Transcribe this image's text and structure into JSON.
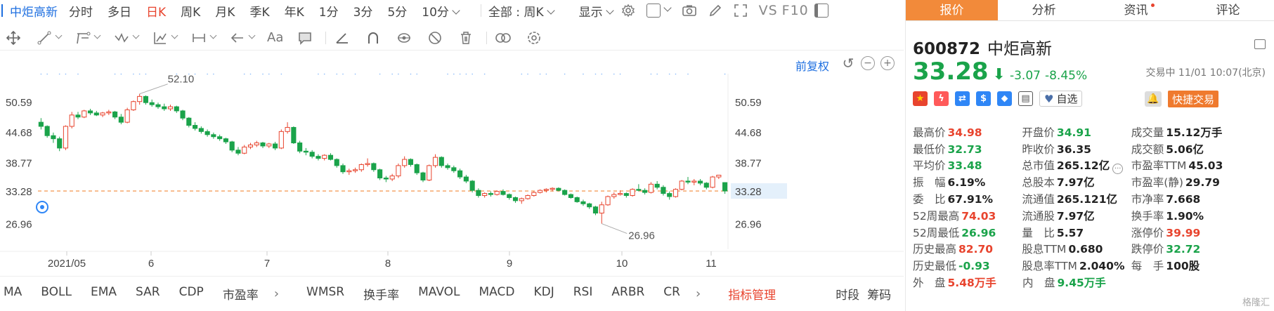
{
  "tabbar": {
    "stock_name": "中炬高新",
    "periods": [
      "分时",
      "多日",
      "日K",
      "周K",
      "月K",
      "季K",
      "年K",
      "1分",
      "3分",
      "5分",
      "10分"
    ],
    "active_period": "日K",
    "range_select": "全部 : 周K",
    "display_label": "显示",
    "vs_label": "VS",
    "f10_label": "F10"
  },
  "chart_header": {
    "adjust_label": "前复权"
  },
  "chart_data": {
    "type": "candlestick",
    "y_ticks": [
      50.59,
      44.68,
      38.77,
      33.28,
      26.96
    ],
    "y_range": [
      22.0,
      56.0
    ],
    "current_price": 33.28,
    "x_tick_labels": [
      "2021/05",
      "6",
      "7",
      "8",
      "9",
      "10",
      "11"
    ],
    "max_label": "52.10",
    "min_label": "26.96",
    "candles": [
      [
        46.6,
        47.4,
        45.2,
        45.8
      ],
      [
        45.8,
        46.0,
        43.6,
        44.0
      ],
      [
        44.0,
        44.6,
        42.6,
        43.4
      ],
      [
        43.4,
        43.8,
        41.0,
        41.6
      ],
      [
        41.6,
        46.0,
        41.2,
        45.8
      ],
      [
        45.8,
        48.6,
        45.4,
        48.0
      ],
      [
        48.0,
        48.6,
        47.2,
        47.6
      ],
      [
        47.6,
        49.0,
        47.4,
        48.8
      ],
      [
        48.8,
        49.2,
        48.0,
        48.4
      ],
      [
        48.4,
        48.8,
        47.8,
        48.0
      ],
      [
        48.0,
        48.6,
        47.6,
        48.4
      ],
      [
        48.4,
        49.0,
        48.0,
        48.6
      ],
      [
        48.6,
        48.8,
        47.2,
        47.6
      ],
      [
        47.6,
        48.2,
        46.2,
        46.6
      ],
      [
        46.6,
        49.4,
        46.4,
        49.0
      ],
      [
        49.0,
        50.8,
        48.8,
        50.6
      ],
      [
        50.6,
        52.1,
        50.0,
        51.6
      ],
      [
        51.6,
        51.8,
        50.0,
        50.4
      ],
      [
        50.4,
        51.0,
        49.6,
        50.0
      ],
      [
        50.0,
        50.4,
        49.2,
        49.6
      ],
      [
        49.6,
        50.2,
        48.8,
        49.2
      ],
      [
        49.2,
        50.0,
        48.8,
        49.6
      ],
      [
        49.6,
        49.8,
        48.4,
        48.8
      ],
      [
        48.8,
        49.0,
        47.0,
        47.4
      ],
      [
        47.4,
        47.6,
        45.6,
        46.0
      ],
      [
        46.0,
        46.6,
        45.0,
        45.4
      ],
      [
        45.4,
        45.8,
        44.4,
        44.8
      ],
      [
        44.8,
        45.2,
        43.8,
        44.2
      ],
      [
        44.2,
        44.6,
        43.4,
        43.8
      ],
      [
        43.8,
        44.2,
        43.0,
        43.4
      ],
      [
        43.4,
        43.6,
        42.4,
        42.8
      ],
      [
        42.8,
        43.0,
        40.8,
        41.2
      ],
      [
        41.2,
        41.8,
        40.2,
        40.6
      ],
      [
        40.6,
        42.2,
        40.4,
        41.8
      ],
      [
        41.8,
        42.6,
        41.4,
        42.2
      ],
      [
        42.2,
        43.0,
        41.8,
        42.6
      ],
      [
        42.6,
        42.8,
        41.6,
        42.0
      ],
      [
        42.0,
        42.6,
        41.6,
        42.4
      ],
      [
        42.4,
        42.8,
        41.2,
        41.6
      ],
      [
        41.6,
        45.2,
        41.4,
        44.8
      ],
      [
        44.8,
        46.6,
        44.4,
        45.6
      ],
      [
        45.6,
        45.8,
        42.4,
        42.6
      ],
      [
        42.6,
        43.0,
        40.6,
        41.0
      ],
      [
        41.0,
        41.6,
        40.2,
        40.8
      ],
      [
        40.8,
        41.2,
        39.6,
        40.0
      ],
      [
        40.0,
        40.4,
        39.2,
        39.6
      ],
      [
        39.6,
        40.4,
        39.2,
        40.2
      ],
      [
        40.2,
        40.6,
        39.2,
        39.4
      ],
      [
        39.4,
        39.6,
        37.8,
        38.2
      ],
      [
        38.2,
        38.6,
        36.6,
        37.0
      ],
      [
        37.0,
        37.6,
        36.4,
        37.2
      ],
      [
        37.2,
        37.8,
        36.8,
        37.4
      ],
      [
        37.4,
        38.6,
        37.0,
        38.4
      ],
      [
        38.4,
        39.6,
        38.0,
        38.6
      ],
      [
        38.6,
        38.8,
        37.0,
        37.4
      ],
      [
        37.4,
        37.6,
        35.4,
        35.8
      ],
      [
        35.8,
        36.2,
        35.0,
        35.6
      ],
      [
        35.6,
        36.6,
        35.2,
        36.2
      ],
      [
        36.2,
        38.6,
        35.8,
        38.2
      ],
      [
        38.2,
        40.0,
        37.8,
        39.4
      ],
      [
        39.4,
        39.6,
        38.0,
        38.4
      ],
      [
        38.4,
        38.6,
        36.4,
        36.8
      ],
      [
        36.8,
        37.0,
        35.0,
        35.4
      ],
      [
        35.4,
        38.4,
        35.2,
        38.2
      ],
      [
        38.2,
        40.4,
        37.8,
        39.8
      ],
      [
        39.8,
        40.0,
        37.8,
        38.2
      ],
      [
        38.2,
        38.6,
        37.4,
        37.8
      ],
      [
        37.8,
        38.2,
        36.8,
        37.2
      ],
      [
        37.2,
        37.6,
        35.6,
        36.0
      ],
      [
        36.0,
        36.4,
        34.8,
        35.2
      ],
      [
        35.2,
        35.4,
        33.0,
        33.4
      ],
      [
        33.4,
        33.8,
        32.0,
        32.4
      ],
      [
        32.4,
        33.0,
        32.0,
        32.8
      ],
      [
        32.8,
        33.2,
        32.2,
        32.6
      ],
      [
        32.6,
        33.4,
        32.4,
        33.2
      ],
      [
        33.2,
        33.6,
        32.4,
        32.6
      ],
      [
        32.6,
        32.8,
        31.6,
        32.0
      ],
      [
        32.0,
        32.2,
        31.0,
        31.4
      ],
      [
        31.4,
        32.0,
        30.8,
        31.8
      ],
      [
        31.8,
        32.6,
        31.6,
        32.4
      ],
      [
        32.4,
        33.2,
        32.2,
        33.0
      ],
      [
        33.0,
        33.6,
        32.8,
        33.4
      ],
      [
        33.4,
        33.8,
        33.0,
        33.6
      ],
      [
        33.6,
        34.0,
        33.2,
        33.8
      ],
      [
        33.8,
        34.0,
        33.2,
        33.4
      ],
      [
        33.4,
        33.6,
        32.4,
        32.6
      ],
      [
        32.6,
        32.8,
        31.8,
        32.0
      ],
      [
        32.0,
        32.2,
        31.0,
        31.2
      ],
      [
        31.2,
        31.6,
        30.4,
        30.8
      ],
      [
        30.8,
        31.0,
        29.8,
        30.2
      ],
      [
        30.2,
        30.4,
        28.6,
        29.0
      ],
      [
        29.0,
        31.2,
        26.96,
        30.6
      ],
      [
        30.6,
        32.4,
        30.4,
        32.2
      ],
      [
        32.2,
        33.0,
        31.8,
        32.6
      ],
      [
        32.6,
        33.4,
        32.4,
        32.8
      ],
      [
        32.8,
        33.0,
        32.0,
        32.4
      ],
      [
        32.4,
        33.8,
        32.2,
        33.6
      ],
      [
        33.6,
        34.6,
        33.2,
        33.4
      ],
      [
        33.4,
        33.8,
        32.6,
        33.0
      ],
      [
        33.0,
        35.0,
        32.8,
        34.6
      ],
      [
        34.6,
        35.2,
        33.6,
        34.0
      ],
      [
        34.0,
        34.4,
        32.4,
        32.8
      ],
      [
        32.8,
        33.2,
        31.6,
        32.2
      ],
      [
        32.2,
        33.8,
        32.0,
        33.6
      ],
      [
        33.6,
        35.4,
        33.4,
        35.2
      ],
      [
        35.2,
        36.0,
        34.6,
        35.0
      ],
      [
        35.0,
        35.6,
        34.4,
        35.2
      ],
      [
        35.2,
        35.6,
        34.4,
        34.8
      ],
      [
        34.8,
        35.0,
        33.6,
        34.0
      ],
      [
        34.0,
        36.2,
        33.8,
        36.0
      ],
      [
        36.0,
        36.4,
        35.6,
        36.35
      ],
      [
        34.91,
        34.98,
        32.73,
        33.28
      ]
    ]
  },
  "toolbar_icons": [
    "crosshair-icon",
    "line-icon",
    "channel-icon",
    "wave-icon",
    "ruler-icon",
    "measure-icon",
    "arrow-icon",
    "text-icon",
    "comment-icon",
    "angle-icon",
    "magnet-icon",
    "eye-icon",
    "hide-icon",
    "trash-icon",
    "link-icon",
    "settings-icon"
  ],
  "text_tool_label": "Aa",
  "indicators": {
    "group1": [
      "MA",
      "BOLL",
      "EMA",
      "SAR",
      "CDP",
      "市盈率"
    ],
    "group2": [
      "WMSR",
      "换手率",
      "MAVOL",
      "MACD",
      "KDJ",
      "RSI",
      "ARBR",
      "CR"
    ],
    "manage_label": "指标管理",
    "segment_label": "时段",
    "chips_label": "筹码"
  },
  "right_tabs": [
    "报价",
    "分析",
    "资讯",
    "评论"
  ],
  "quote": {
    "code": "600872",
    "name": "中炬高新",
    "price": "33.28",
    "change": "-3.07",
    "change_pct": "-8.45%",
    "status": "交易中 11/01 10:07(北京)",
    "watch_label": "自选",
    "trade_label": "快捷交易"
  },
  "stats": [
    [
      {
        "l": "最高价",
        "v": "34.98",
        "c": "red"
      },
      {
        "l": "开盘价",
        "v": "34.91",
        "c": "green"
      },
      {
        "l": "成交量",
        "v": "15.12万手",
        "c": "black"
      }
    ],
    [
      {
        "l": "最低价",
        "v": "32.73",
        "c": "green"
      },
      {
        "l": "昨收价",
        "v": "36.35",
        "c": "black"
      },
      {
        "l": "成交额",
        "v": "5.06亿",
        "c": "black"
      }
    ],
    [
      {
        "l": "平均价",
        "v": "33.48",
        "c": "green"
      },
      {
        "l": "总市值",
        "v": "265.12亿",
        "c": "black"
      },
      {
        "l": "市盈率TTM",
        "v": "45.03",
        "c": "black"
      }
    ],
    [
      {
        "l": "振　幅",
        "v": "6.19%",
        "c": "black"
      },
      {
        "l": "总股本",
        "v": "7.97亿",
        "c": "black"
      },
      {
        "l": "市盈率(静)",
        "v": "29.79",
        "c": "black"
      }
    ],
    [
      {
        "l": "委　比",
        "v": "67.91%",
        "c": "black"
      },
      {
        "l": "流通值",
        "v": "265.121亿",
        "c": "black"
      },
      {
        "l": "市净率",
        "v": "7.668",
        "c": "black"
      }
    ],
    [
      {
        "l": "52周最高",
        "v": "74.03",
        "c": "red"
      },
      {
        "l": "流通股",
        "v": "7.97亿",
        "c": "black"
      },
      {
        "l": "换手率",
        "v": "1.90%",
        "c": "black"
      }
    ],
    [
      {
        "l": "52周最低",
        "v": "26.96",
        "c": "green"
      },
      {
        "l": "量　比",
        "v": "5.57",
        "c": "black"
      },
      {
        "l": "涨停价",
        "v": "39.99",
        "c": "red"
      }
    ],
    [
      {
        "l": "历史最高",
        "v": "82.70",
        "c": "red"
      },
      {
        "l": "股息TTM",
        "v": "0.680",
        "c": "black"
      },
      {
        "l": "跌停价",
        "v": "32.72",
        "c": "green"
      }
    ],
    [
      {
        "l": "历史最低",
        "v": "-0.93",
        "c": "green"
      },
      {
        "l": "股息率TTM",
        "v": "2.040%",
        "c": "black"
      },
      {
        "l": "每　手",
        "v": "100股",
        "c": "black"
      }
    ],
    [
      {
        "l": "外　盘",
        "v": "5.48万手",
        "c": "red"
      },
      {
        "l": "内　盘",
        "v": "9.45万手",
        "c": "green"
      }
    ]
  ],
  "colors": {
    "up": "#e8442e",
    "down": "#1aa34a",
    "accent": "#1e6fe0",
    "orange": "#f28a3a",
    "dots": "#2f86f6"
  },
  "watermark": "格隆汇"
}
